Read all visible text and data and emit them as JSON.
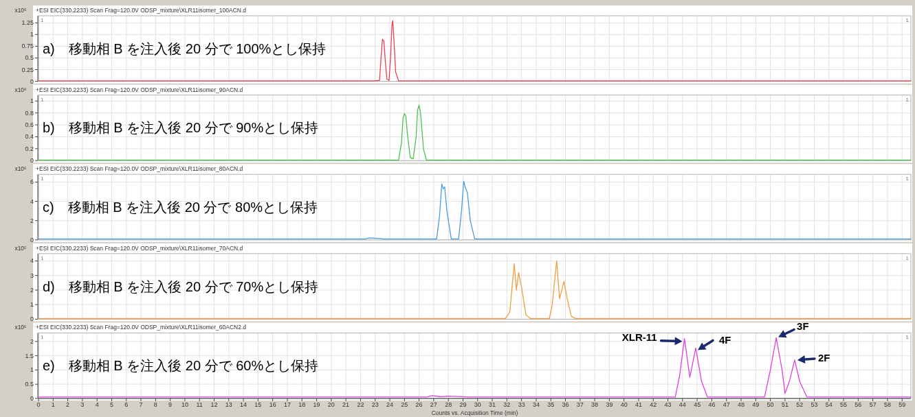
{
  "chart_data": [
    {
      "type": "line",
      "title": "+ESI EIC(330.2233) Scan Frag=120.0V ODSP_mixture\\XLR11isomer_100ACN.d",
      "ylabel": "x10⁶",
      "xlim": [
        0,
        59.6
      ],
      "xticks": [
        0,
        1,
        2,
        3,
        4,
        5,
        6,
        7,
        8,
        9,
        10,
        11,
        12,
        13,
        14,
        15,
        16,
        17,
        18,
        19,
        20,
        21,
        22,
        23,
        24,
        25,
        26,
        27,
        28,
        29,
        30,
        31,
        32,
        33,
        34,
        35,
        36,
        37,
        38,
        39,
        40,
        41,
        42,
        43,
        44,
        45,
        46,
        47,
        48,
        49,
        50,
        51,
        52,
        53,
        54,
        55,
        56,
        57,
        58,
        59
      ],
      "ylim": [
        0,
        1.4
      ],
      "yticks": [
        0,
        0.25,
        0.5,
        0.75,
        1,
        1.25
      ],
      "grid": true,
      "tick_labels": "y",
      "x": [
        0,
        22.5,
        23.0,
        23.3,
        23.4,
        23.5,
        23.6,
        23.7,
        23.8,
        23.95,
        24.05,
        24.15,
        24.2,
        24.3,
        24.4,
        24.6,
        59.6
      ],
      "series": [
        {
          "color": "#e8424f",
          "values": [
            0.01,
            0.01,
            0.01,
            0.02,
            0.5,
            0.9,
            0.85,
            0.4,
            0.05,
            0.02,
            0.5,
            1.2,
            1.3,
            0.8,
            0.2,
            0.01,
            0.01
          ]
        }
      ],
      "annotations": [
        "a)　移動相 B を注入後 20 分で 100%とし保持",
        "1",
        "1"
      ]
    },
    {
      "type": "line",
      "title": "+ESI EIC(330.2233) Scan Frag=120.0V ODSP_mixture\\XLR11isomer_90ACN.d",
      "ylabel": "x10⁶",
      "xlim": [
        0,
        59.6
      ],
      "xticks": [
        0,
        1,
        2,
        3,
        4,
        5,
        6,
        7,
        8,
        9,
        10,
        11,
        12,
        13,
        14,
        15,
        16,
        17,
        18,
        19,
        20,
        21,
        22,
        23,
        24,
        25,
        26,
        27,
        28,
        29,
        30,
        31,
        32,
        33,
        34,
        35,
        36,
        37,
        38,
        39,
        40,
        41,
        42,
        43,
        44,
        45,
        46,
        47,
        48,
        49,
        50,
        51,
        52,
        53,
        54,
        55,
        56,
        57,
        58,
        59
      ],
      "ylim": [
        0,
        1.1
      ],
      "yticks": [
        0,
        0.2,
        0.4,
        0.6,
        0.8,
        1
      ],
      "grid": true,
      "tick_labels": "y",
      "x": [
        0,
        24.6,
        24.8,
        24.9,
        25.0,
        25.1,
        25.2,
        25.4,
        25.6,
        25.8,
        25.9,
        26.0,
        26.1,
        26.3,
        26.5,
        59.6
      ],
      "series": [
        {
          "color": "#4ec24e",
          "values": [
            0.01,
            0.01,
            0.3,
            0.7,
            0.79,
            0.75,
            0.45,
            0.05,
            0.03,
            0.4,
            0.85,
            0.93,
            0.8,
            0.2,
            0.01,
            0.01
          ]
        }
      ],
      "annotations": [
        "b)　移動相 B を注入後 20 分で 90%とし保持",
        "1",
        "1"
      ]
    },
    {
      "type": "line",
      "title": "+ESI EIC(330.2233) Scan Frag=120.0V ODSP_mixture\\XLR11isomer_80ACN.d",
      "ylabel": "x10⁵",
      "xlim": [
        0,
        59.6
      ],
      "xticks": [
        0,
        1,
        2,
        3,
        4,
        5,
        6,
        7,
        8,
        9,
        10,
        11,
        12,
        13,
        14,
        15,
        16,
        17,
        18,
        19,
        20,
        21,
        22,
        23,
        24,
        25,
        26,
        27,
        28,
        29,
        30,
        31,
        32,
        33,
        34,
        35,
        36,
        37,
        38,
        39,
        40,
        41,
        42,
        43,
        44,
        45,
        46,
        47,
        48,
        49,
        50,
        51,
        52,
        53,
        54,
        55,
        56,
        57,
        58,
        59
      ],
      "ylim": [
        0,
        6.8
      ],
      "yticks": [
        0,
        2,
        4,
        6
      ],
      "grid": true,
      "tick_labels": "y",
      "x": [
        0,
        22.3,
        22.6,
        23.3,
        23.6,
        27.2,
        27.4,
        27.55,
        27.65,
        27.75,
        27.9,
        28.2,
        28.7,
        28.9,
        29.05,
        29.15,
        29.3,
        29.5,
        29.8,
        59.6
      ],
      "series": [
        {
          "color": "#4a9de0",
          "values": [
            0.1,
            0.1,
            0.2,
            0.15,
            0.1,
            0.1,
            2.5,
            5.8,
            5.3,
            5.5,
            3.0,
            0.1,
            0.1,
            3.0,
            6.1,
            5.5,
            4.9,
            2.0,
            0.1,
            0.1
          ]
        }
      ],
      "annotations": [
        "c)　移動相 B を注入後 20 分で 80%とし保持",
        "1",
        "1"
      ]
    },
    {
      "type": "line",
      "title": "+ESI EIC(330.2233) Scan Frag=120.0V ODSP_mixture\\XLR11isomer_70ACN.d",
      "ylabel": "x10⁵",
      "xlim": [
        0,
        59.6
      ],
      "xticks": [
        0,
        1,
        2,
        3,
        4,
        5,
        6,
        7,
        8,
        9,
        10,
        11,
        12,
        13,
        14,
        15,
        16,
        17,
        18,
        19,
        20,
        21,
        22,
        23,
        24,
        25,
        26,
        27,
        28,
        29,
        30,
        31,
        32,
        33,
        34,
        35,
        36,
        37,
        38,
        39,
        40,
        41,
        42,
        43,
        44,
        45,
        46,
        47,
        48,
        49,
        50,
        51,
        52,
        53,
        54,
        55,
        56,
        57,
        58,
        59
      ],
      "ylim": [
        0,
        4.5
      ],
      "yticks": [
        0,
        1,
        2,
        3,
        4
      ],
      "grid": true,
      "tick_labels": "y",
      "x": [
        0,
        31.9,
        32.2,
        32.5,
        32.65,
        32.8,
        33.0,
        33.3,
        33.6,
        34.9,
        35.1,
        35.4,
        35.6,
        35.9,
        36.1,
        36.4,
        36.7,
        59.6
      ],
      "series": [
        {
          "color": "#f0a040",
          "values": [
            0.05,
            0.05,
            0.5,
            3.8,
            2.0,
            3.2,
            2.2,
            0.3,
            0.05,
            0.05,
            1.0,
            4.0,
            1.4,
            2.6,
            1.5,
            0.2,
            0.05,
            0.05
          ]
        }
      ],
      "annotations": [
        "d)　移動相 B を注入後 20 分で 70%とし保持",
        "1",
        "1"
      ]
    },
    {
      "type": "line",
      "title": "+ESI EIC(330.2233) Scan Frag=120.0V ODSP_mixture\\XLR11isomer_60ACN2.d",
      "ylabel": "x10⁵",
      "xlabel": "Counts vs. Acquisition Time (min)",
      "xlim": [
        0,
        59.6
      ],
      "xticks": [
        0,
        1,
        2,
        3,
        4,
        5,
        6,
        7,
        8,
        9,
        10,
        11,
        12,
        13,
        14,
        15,
        16,
        17,
        18,
        19,
        20,
        21,
        22,
        23,
        24,
        25,
        26,
        27,
        28,
        29,
        30,
        31,
        32,
        33,
        34,
        35,
        36,
        37,
        38,
        39,
        40,
        41,
        42,
        43,
        44,
        45,
        46,
        47,
        48,
        49,
        50,
        51,
        52,
        53,
        54,
        55,
        56,
        57,
        58,
        59
      ],
      "ylim": [
        0,
        2.3
      ],
      "yticks": [
        0,
        0.5,
        1,
        1.5,
        2
      ],
      "grid": true,
      "x": [
        0,
        26.5,
        26.9,
        27.5,
        28.0,
        29.5,
        43.5,
        43.8,
        44.13,
        44.5,
        44.9,
        45.3,
        45.7,
        49.6,
        50.0,
        50.4,
        50.8,
        51.0,
        51.3,
        51.66,
        52.0,
        52.5,
        59.6
      ],
      "series": [
        {
          "color": "#e040e0",
          "values": [
            0.05,
            0.05,
            0.1,
            0.06,
            0.08,
            0.05,
            0.05,
            0.8,
            2.1,
            0.74,
            1.77,
            0.6,
            0.05,
            0.05,
            1.0,
            2.13,
            1.0,
            0.18,
            0.6,
            1.35,
            0.6,
            0.05,
            0.05
          ]
        }
      ],
      "annotations": [
        "e)　移動相 B を注入後 20 分で 60%とし保持",
        "1",
        "1",
        {
          "text": "XLR-11",
          "x": 44.13,
          "y": 2.1
        },
        {
          "text": "4F",
          "x": 44.9,
          "y": 1.77
        },
        {
          "text": "3F",
          "x": 50.4,
          "y": 2.13
        },
        {
          "text": "2F",
          "x": 51.66,
          "y": 1.35
        }
      ]
    }
  ]
}
